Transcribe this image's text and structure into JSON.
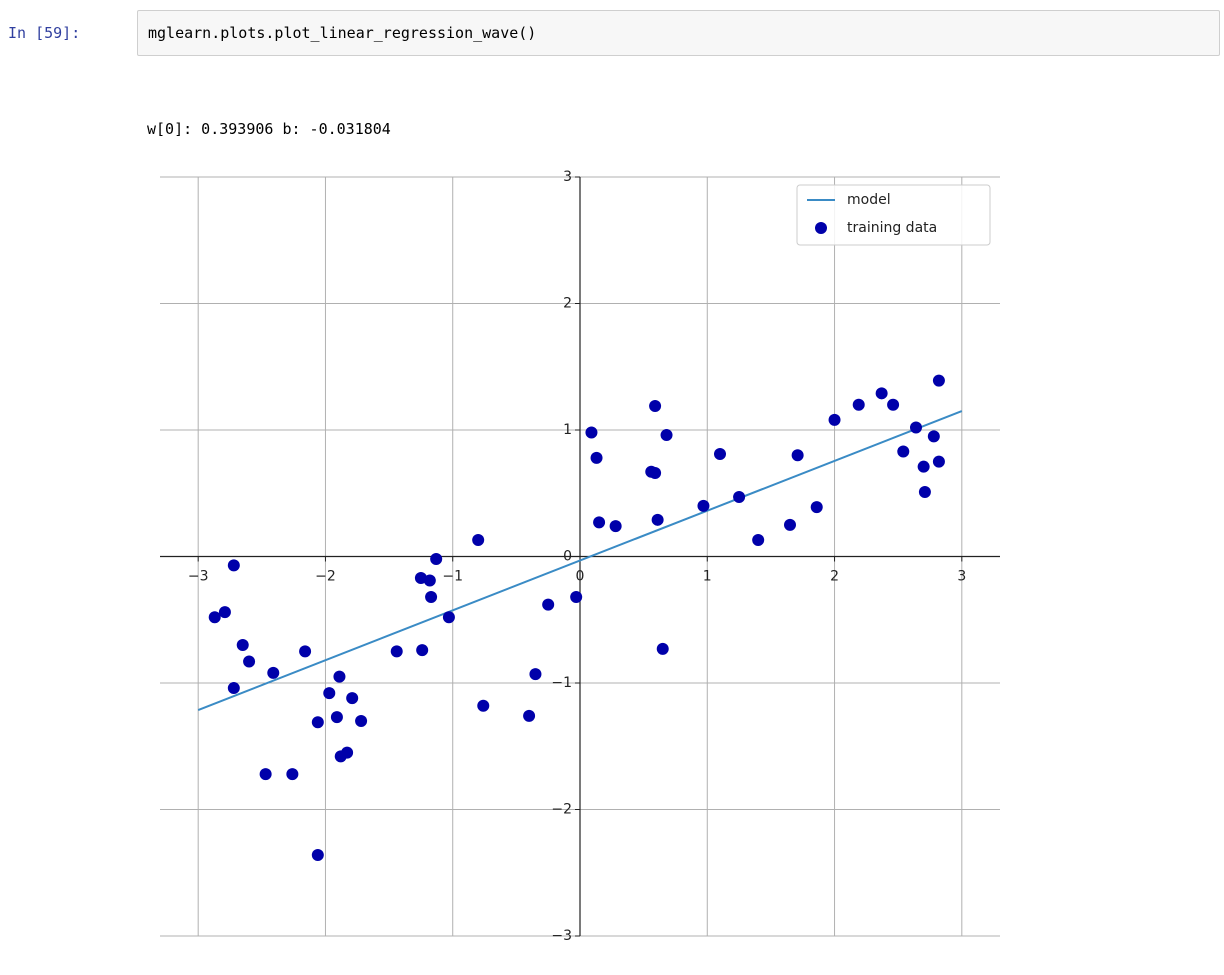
{
  "cell": {
    "prompt": "In  [59]:",
    "code": "mglearn.plots.plot_linear_regression_wave()",
    "output": "w[0]: 0.393906  b: -0.031804"
  },
  "chart_data": {
    "type": "scatter",
    "xlim": [
      -3.3,
      3.3
    ],
    "ylim": [
      -3,
      3
    ],
    "xticks": [
      {
        "value": -3,
        "label": "−3"
      },
      {
        "value": -2,
        "label": "−2"
      },
      {
        "value": -1,
        "label": "−1"
      },
      0,
      1,
      2,
      3
    ],
    "yticks": [
      {
        "value": -3,
        "label": "−3"
      },
      {
        "value": -2,
        "label": "−2"
      },
      {
        "value": -1,
        "label": "−1"
      },
      0,
      1,
      2,
      3
    ],
    "grid": true,
    "legend": "upper right",
    "series": [
      {
        "name": "model",
        "style": "line",
        "color": "#3a8bc5",
        "x": [
          -3,
          3
        ],
        "values": [
          -1.213522,
          1.149914
        ]
      },
      {
        "name": "training data",
        "style": "marker",
        "color": "#0000aa",
        "x": [
          -2.87,
          -2.79,
          -2.72,
          -2.65,
          -2.6,
          -2.72,
          -2.41,
          -2.47,
          -2.26,
          -2.16,
          -2.06,
          -2.06,
          -1.97,
          -1.91,
          -1.89,
          -1.88,
          -1.83,
          -1.79,
          -1.72,
          -1.44,
          -1.24,
          -1.25,
          -1.18,
          -1.17,
          -1.13,
          -1.03,
          -0.8,
          -0.76,
          -0.4,
          -0.35,
          -0.25,
          -0.03,
          0.09,
          0.13,
          0.15,
          0.28,
          0.56,
          0.59,
          0.59,
          0.61,
          0.65,
          0.68,
          0.97,
          1.1,
          1.25,
          1.4,
          1.65,
          1.71,
          1.86,
          2.0,
          2.19,
          2.37,
          2.46,
          2.54,
          2.64,
          2.7,
          2.71,
          2.78,
          2.82,
          2.82
        ],
        "values": [
          -0.48,
          -0.44,
          -0.07,
          -0.7,
          -0.83,
          -1.04,
          -0.92,
          -1.72,
          -1.72,
          -0.75,
          -1.31,
          -2.36,
          -1.08,
          -1.27,
          -0.95,
          -1.58,
          -1.55,
          -1.12,
          -1.3,
          -0.75,
          -0.74,
          -0.17,
          -0.19,
          -0.32,
          -0.02,
          -0.48,
          0.13,
          -1.18,
          -1.26,
          -0.93,
          -0.38,
          -0.32,
          0.98,
          0.78,
          0.27,
          0.24,
          0.67,
          0.66,
          1.19,
          0.29,
          -0.73,
          0.96,
          0.4,
          0.81,
          0.47,
          0.13,
          0.25,
          0.8,
          0.39,
          1.08,
          1.2,
          1.29,
          1.2,
          0.83,
          1.02,
          0.71,
          0.51,
          0.95,
          1.39,
          0.75
        ]
      }
    ]
  }
}
